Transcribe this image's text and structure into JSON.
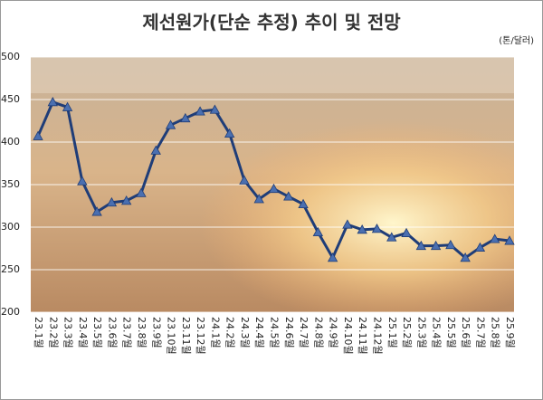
{
  "chart_data": {
    "type": "line",
    "title": "제선원가(단순 추정) 추이 및 전망",
    "unit_label": "(톤/달러)",
    "categories": [
      "23.1월",
      "23.2월",
      "23.3월",
      "23.4월",
      "23.5월",
      "23.6월",
      "23.7월",
      "23.8월",
      "23.9월",
      "23.10월",
      "23.11월",
      "23.12월",
      "24.1월",
      "24.2월",
      "24.3월",
      "24.4월",
      "24.5월",
      "24.6월",
      "24.7월",
      "24.8월",
      "24.9월",
      "24.10월",
      "24.11월",
      "24.12월",
      "25.1월",
      "25.2월",
      "25.3월",
      "25.4월",
      "25.5월",
      "25.6월",
      "25.7월",
      "25.8월",
      "25.9월"
    ],
    "values": [
      407,
      447,
      441,
      354,
      318,
      329,
      331,
      340,
      390,
      420,
      428,
      436,
      438,
      410,
      355,
      333,
      345,
      336,
      327,
      294,
      264,
      303,
      297,
      298,
      288,
      293,
      278,
      278,
      279,
      264,
      276,
      286,
      284
    ],
    "color": "#1f3d78",
    "ylim": [
      200,
      500
    ],
    "yticks": [
      200,
      250,
      300,
      350,
      400,
      450,
      500
    ],
    "grid": true
  }
}
